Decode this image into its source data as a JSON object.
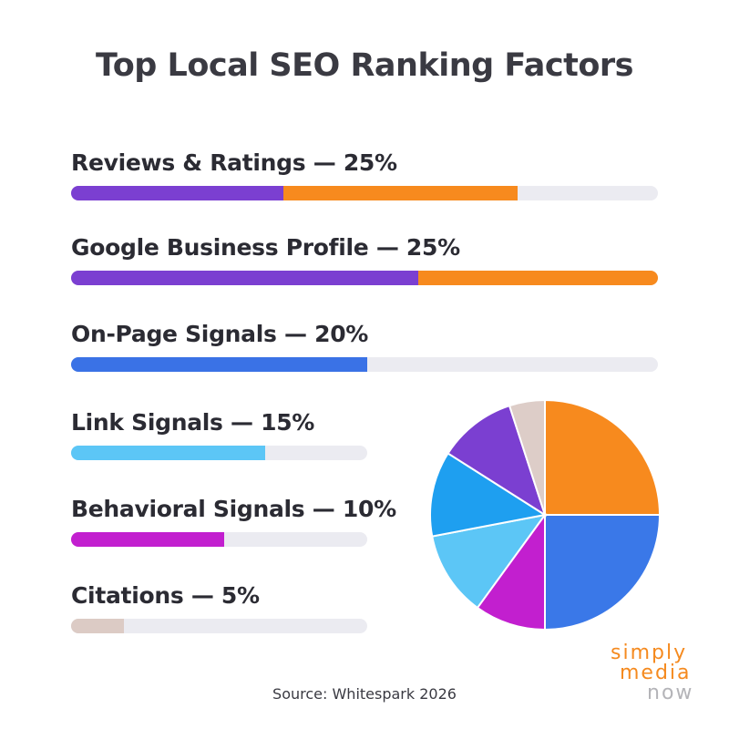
{
  "chart_data": {
    "type": "bar",
    "title": "Top Local SEO Ranking Factors",
    "orientation": "horizontal",
    "categories": [
      "Reviews & Ratings",
      "Google Business Profile",
      "On-Page Signals",
      "Link Signals",
      "Behavioral Signals",
      "Citations"
    ],
    "values": [
      25,
      25,
      20,
      15,
      10,
      5
    ],
    "unit": "%",
    "labels": [
      "Reviews & Ratings — 25%",
      "Google Business Profile — 25%",
      "On-Page Signals — 20%",
      "Link Signals — 15%",
      "Behavioral Signals — 10%",
      "Citations — 5%"
    ],
    "colors": [
      [
        "#7b3fd1",
        "#f78a1e"
      ],
      [
        "#7b3fd1",
        "#f78a1e"
      ],
      [
        "#3a72e6"
      ],
      [
        "#5cc6f6"
      ],
      [
        "#c21fcf"
      ],
      [
        "#dccbc5"
      ]
    ],
    "pie": {
      "type": "pie",
      "slices": [
        {
          "value": 25,
          "color": "#f78a1e"
        },
        {
          "value": 25,
          "color": "#3a78e8"
        },
        {
          "value": 10,
          "color": "#c21fcf"
        },
        {
          "value": 12,
          "color": "#5cc6f6"
        },
        {
          "value": 12,
          "color": "#1e9ff0"
        },
        {
          "value": 11,
          "color": "#7b3fd1"
        },
        {
          "value": 5,
          "color": "#ddcdc8"
        }
      ]
    }
  },
  "source": "Source: Whitespark 2026",
  "logo": {
    "line1": "simply",
    "line2": "media",
    "line3": "now"
  }
}
